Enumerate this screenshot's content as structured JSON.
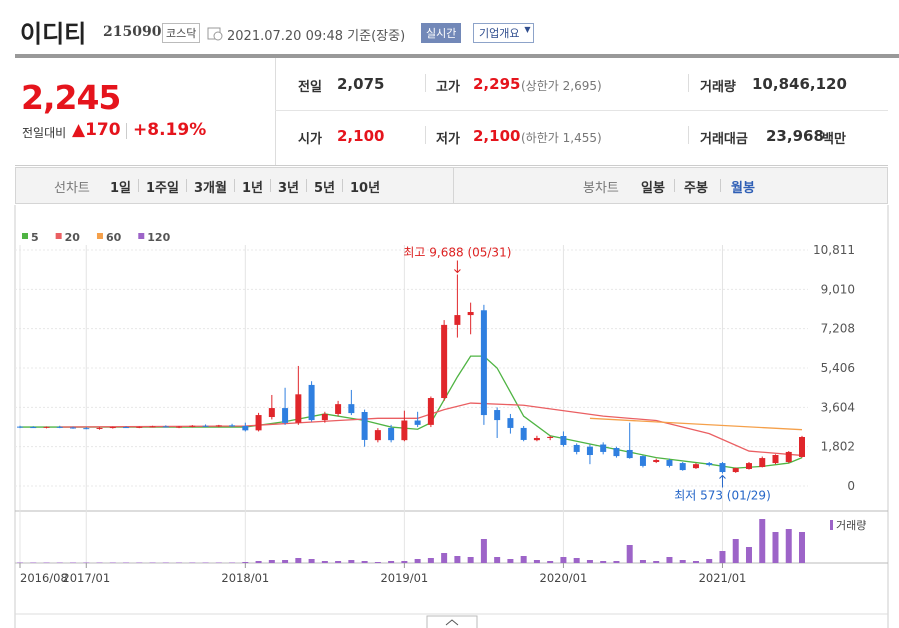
{
  "header": {
    "name": "이디티",
    "code": "215090",
    "market": "코스닥",
    "time": "2021.07.20 09:48 기준(장중)",
    "realtime": "실시간",
    "company": "기업개요"
  },
  "summary": {
    "price": "2,245",
    "change_label": "전일대비",
    "change": "▲170",
    "rate": "+8.19%",
    "items": [
      {
        "label": "전일",
        "value": "2,075"
      },
      {
        "label": "고가",
        "value": "2,295",
        "note": "(상한가 2,695)"
      },
      {
        "label": "거래량",
        "value": "10,846,120"
      },
      {
        "label": "시가",
        "value": "2,100"
      },
      {
        "label": "저가",
        "value": "2,100",
        "note": "(하한가 1,455)"
      },
      {
        "label": "거래대금",
        "value": "23,968",
        "unit": "백만"
      }
    ]
  },
  "tabs": {
    "line_label": "선차트",
    "line": [
      "1일",
      "1주일",
      "3개월",
      "1년",
      "3년",
      "5년",
      "10년"
    ],
    "candle_label": "봉차트",
    "candle": [
      "일봉",
      "주봉",
      "월봉"
    ]
  },
  "chart_data": {
    "type": "candlestick",
    "up_color": "#e0262b",
    "down_color": "#2f7fe0",
    "x": [
      "2016/08",
      "2016/09",
      "2016/10",
      "2016/11",
      "2016/12",
      "2017/01",
      "2017/02",
      "2017/03",
      "2017/04",
      "2017/05",
      "2017/06",
      "2017/07",
      "2017/08",
      "2017/09",
      "2017/10",
      "2017/11",
      "2017/12",
      "2018/01",
      "2018/02",
      "2018/03",
      "2018/04",
      "2018/05",
      "2018/06",
      "2018/07",
      "2018/08",
      "2018/09",
      "2018/10",
      "2018/11",
      "2018/12",
      "2019/01",
      "2019/02",
      "2019/03",
      "2019/04",
      "2019/05",
      "2019/06",
      "2019/07",
      "2019/08",
      "2019/09",
      "2019/10",
      "2019/11",
      "2019/12",
      "2020/01",
      "2020/02",
      "2020/03",
      "2020/04",
      "2020/05",
      "2020/06",
      "2020/07",
      "2020/08",
      "2020/09",
      "2020/10",
      "2020/11",
      "2020/12",
      "2021/01",
      "2021/02",
      "2021/03",
      "2021/04",
      "2021/05",
      "2021/06",
      "2021/07"
    ],
    "open": [
      2720,
      2700,
      2690,
      2710,
      2680,
      2650,
      2620,
      2660,
      2700,
      2680,
      2710,
      2730,
      2700,
      2720,
      2760,
      2740,
      2780,
      2750,
      2550,
      3160,
      3570,
      2900,
      4630,
      3020,
      3300,
      3750,
      3390,
      2100,
      2660,
      2100,
      3000,
      2800,
      4030,
      7380,
      7830,
      8050,
      3480,
      3110,
      2660,
      2100,
      2200,
      2290,
      1880,
      1800,
      1900,
      1740,
      1650,
      1370,
      1100,
      1190,
      1050,
      820,
      1050,
      1050,
      640,
      780,
      870,
      1050,
      1100,
      1330
    ],
    "high": [
      2760,
      2740,
      2730,
      2760,
      2720,
      2700,
      2690,
      2720,
      2740,
      2730,
      2760,
      2780,
      2750,
      2790,
      2820,
      2800,
      2850,
      2900,
      3350,
      4170,
      4500,
      5500,
      4800,
      3400,
      3900,
      4400,
      3500,
      2650,
      2800,
      3450,
      3400,
      4100,
      7600,
      9688,
      8400,
      8300,
      3600,
      3300,
      2750,
      2300,
      2300,
      2500,
      1950,
      1900,
      2000,
      1800,
      2900,
      1400,
      1250,
      1250,
      1100,
      1050,
      1100,
      1100,
      850,
      1100,
      1350,
      1450,
      1600,
      2295
    ],
    "low": [
      2650,
      2660,
      2640,
      2650,
      2620,
      2600,
      2580,
      2630,
      2660,
      2650,
      2680,
      2690,
      2650,
      2680,
      2700,
      2690,
      2700,
      2500,
      2500,
      3050,
      2800,
      2800,
      2950,
      2900,
      3200,
      3250,
      1800,
      2000,
      2000,
      2050,
      2700,
      2700,
      3900,
      6800,
      6950,
      2800,
      2200,
      2400,
      2050,
      2050,
      2100,
      1800,
      1450,
      1000,
      1450,
      1300,
      1250,
      850,
      1050,
      850,
      700,
      780,
      900,
      573,
      600,
      750,
      850,
      1000,
      1050,
      1300
    ],
    "close": [
      2700,
      2690,
      2710,
      2680,
      2650,
      2620,
      2660,
      2700,
      2680,
      2710,
      2730,
      2700,
      2720,
      2760,
      2740,
      2780,
      2750,
      2550,
      3250,
      3570,
      2890,
      4200,
      3020,
      3300,
      3750,
      3340,
      2110,
      2560,
      2100,
      3000,
      2800,
      4030,
      7380,
      7830,
      7970,
      3250,
      3020,
      2660,
      2110,
      2200,
      2250,
      1880,
      1560,
      1420,
      1560,
      1370,
      1280,
      920,
      1190,
      920,
      730,
      1000,
      960,
      640,
      820,
      1050,
      1280,
      1420,
      1560,
      2245
    ],
    "x_labels": [
      "2016/08",
      "2017/01",
      "2018/01",
      "2019/01",
      "2020/01",
      "2021/01"
    ],
    "ylim": [
      0,
      10811
    ],
    "yticks": [
      0,
      {
        "value": 1802,
        "label": "1,802"
      },
      {
        "value": 3604,
        "label": "3,604"
      },
      {
        "value": 5406,
        "label": "5,406"
      },
      {
        "value": 7208,
        "label": "7,208"
      },
      {
        "value": 9010,
        "label": "9,010"
      },
      {
        "value": 10811,
        "label": "10,811"
      }
    ],
    "ma_series": [
      {
        "name": "5",
        "color": "#4fb443",
        "x": [
          "2016/08",
          "2018/01",
          "2018/04",
          "2018/07",
          "2018/10",
          "2018/12",
          "2019/02",
          "2019/03",
          "2019/05",
          "2019/06",
          "2019/07",
          "2019/08",
          "2019/10",
          "2019/12",
          "2020/04",
          "2020/08",
          "2020/12",
          "2021/02",
          "2021/04",
          "2021/06",
          "2021/07"
        ],
        "values": [
          2700,
          2700,
          2950,
          3300,
          3000,
          2700,
          2600,
          2900,
          5000,
          5950,
          5950,
          5400,
          3200,
          2300,
          1800,
          1300,
          1000,
          820,
          900,
          1050,
          1300
        ]
      },
      {
        "name": "20",
        "color": "#ea5f62",
        "x": [
          "2016/11",
          "2018/01",
          "2018/08",
          "2018/11",
          "2019/02",
          "2019/04",
          "2019/06",
          "2019/10",
          "2020/04",
          "2020/08",
          "2020/12",
          "2021/03",
          "2021/07"
        ],
        "values": [
          2700,
          2750,
          3000,
          3100,
          3100,
          3500,
          3800,
          3700,
          3200,
          3000,
          2400,
          1600,
          1400
        ]
      },
      {
        "name": "60",
        "color": "#f5a04a",
        "x": [
          "2020/03",
          "2021/07"
        ],
        "values": [
          3100,
          2580
        ]
      },
      {
        "name": "120",
        "color": "#9d64c8",
        "x": [],
        "values": []
      }
    ],
    "annotations": [
      {
        "text": "최고 9,688 (05/31)",
        "x": "2019/05",
        "value": 9688
      },
      {
        "text": "최저 573 (01/29)",
        "x": "2021/01",
        "value": 573
      }
    ],
    "volume": {
      "name": "거래량",
      "color": "#9d64c8",
      "ylim": [
        0,
        44
      ],
      "values": [
        0.5,
        0.5,
        0.5,
        0.5,
        0.5,
        0.5,
        0.5,
        0.5,
        0.5,
        0.5,
        0.5,
        0.5,
        0.5,
        0.5,
        0.5,
        0.5,
        0.5,
        1,
        2,
        3,
        3,
        5,
        4,
        2,
        2,
        3,
        2,
        1,
        2,
        2,
        4,
        5,
        10,
        7,
        6,
        24,
        6,
        4,
        7,
        3,
        2,
        6,
        5,
        3,
        2,
        2,
        18,
        3,
        2,
        6,
        3,
        2,
        4,
        12,
        24,
        16,
        44,
        31,
        34,
        31
      ]
    }
  }
}
